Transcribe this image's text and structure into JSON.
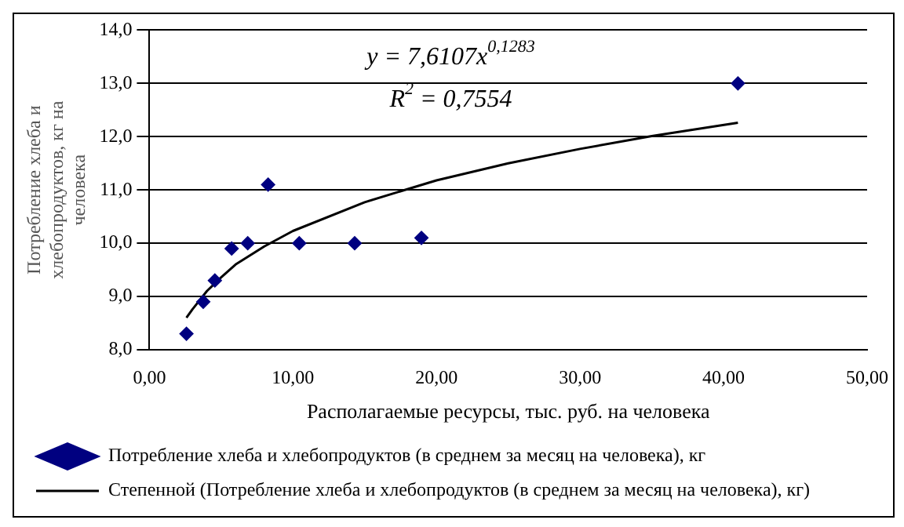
{
  "chart_data": {
    "type": "scatter",
    "xlabel": "Располагаемые ресурсы, тыс. руб. на человека",
    "ylabel": "Потребление хлеба и хлебопродуктов, кг на человека",
    "series": [
      {
        "name": "Потребление хлеба и хлебопродуктов (в среднем за месяц на человека), кг",
        "color": "#000080",
        "marker": "diamond",
        "x": [
          2.58,
          3.75,
          4.56,
          5.73,
          6.85,
          8.27,
          10.44,
          14.3,
          18.95,
          41.0
        ],
        "values": [
          8.3,
          8.9,
          9.3,
          9.9,
          10.0,
          11.1,
          10.0,
          10.0,
          10.1,
          13.0
        ]
      },
      {
        "name": "Степенной (Потребление хлеба и хлебопродуктов (в среднем за месяц на человека), кг)",
        "type": "line",
        "color": "#000000",
        "marker": "none",
        "line_style": "solid",
        "x": [
          2.58,
          3,
          4,
          5,
          6,
          8,
          10,
          15,
          20,
          25,
          30,
          35,
          41
        ],
        "values": [
          8.6,
          8.76,
          9.1,
          9.36,
          9.6,
          9.94,
          10.23,
          10.77,
          11.18,
          11.5,
          11.77,
          12.01,
          12.26
        ]
      }
    ],
    "annotations": [
      "y = 7,6107x$^{0,1283}$",
      "R$^{2}$ = 0,7554"
    ],
    "xlim": [
      0,
      50
    ],
    "xticks": [
      {
        "value": 0,
        "label": "0,00"
      },
      {
        "value": 10,
        "label": "10,00"
      },
      {
        "value": 20,
        "label": "20,00"
      },
      {
        "value": 30,
        "label": "30,00"
      },
      {
        "value": 40,
        "label": "40,00"
      },
      {
        "value": 50,
        "label": "50,00"
      }
    ],
    "ylim": [
      8,
      14
    ],
    "yticks": [
      {
        "value": 8,
        "label": "8,0"
      },
      {
        "value": 9,
        "label": "9,0"
      },
      {
        "value": 10,
        "label": "10,0"
      },
      {
        "value": 11,
        "label": "11,0"
      },
      {
        "value": 12,
        "label": "12,0"
      },
      {
        "value": 13,
        "label": "13,0"
      },
      {
        "value": 14,
        "label": "14,0"
      }
    ],
    "grid": "y",
    "legend": "bottom"
  }
}
